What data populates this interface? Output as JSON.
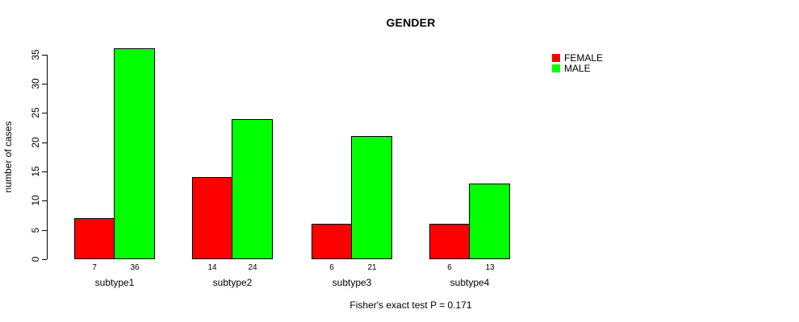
{
  "chart_data": {
    "type": "bar",
    "title": "GENDER",
    "ylabel": "number of cases",
    "xlabel": "",
    "categories": [
      "subtype1",
      "subtype2",
      "subtype3",
      "subtype4"
    ],
    "series": [
      {
        "name": "FEMALE",
        "color": "#FF0000",
        "values": [
          7,
          14,
          6,
          6
        ]
      },
      {
        "name": "MALE",
        "color": "#00FF00",
        "values": [
          36,
          24,
          21,
          13
        ]
      }
    ],
    "yticks": [
      0,
      5,
      10,
      15,
      20,
      25,
      30,
      35
    ],
    "ylim": [
      0,
      36
    ],
    "grid": false,
    "legend_position": "right-outside",
    "bar_border_color": "#000000",
    "background_color": "#FFFFFF",
    "annotation": "Fisher's exact test P = 0.171"
  }
}
